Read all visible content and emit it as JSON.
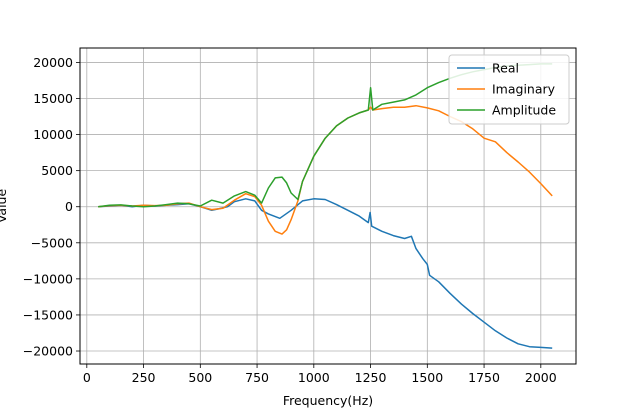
{
  "chart_data": {
    "type": "line",
    "title": "",
    "xlabel": "Frequency(Hz)",
    "ylabel": "Value",
    "xlim": [
      -30,
      2155
    ],
    "ylim": [
      -21800,
      22000
    ],
    "grid": true,
    "legend_position": "top-right",
    "xticks": [
      0,
      250,
      500,
      750,
      1000,
      1250,
      1500,
      1750,
      2000
    ],
    "xtick_labels": [
      "0",
      "250",
      "500",
      "750",
      "1000",
      "1250",
      "1500",
      "1750",
      "2000"
    ],
    "yticks": [
      -20000,
      -15000,
      -10000,
      -5000,
      0,
      5000,
      10000,
      15000,
      20000
    ],
    "ytick_labels": [
      "−20000",
      "−15000",
      "−10000",
      "−5000",
      "0",
      "5000",
      "10000",
      "15000",
      "20000"
    ],
    "series": [
      {
        "name": "Real",
        "color": "#1f77b4",
        "x": [
          50,
          100,
          150,
          200,
          250,
          300,
          350,
          400,
          450,
          500,
          550,
          580,
          620,
          650,
          700,
          740,
          770,
          800,
          850,
          900,
          950,
          1000,
          1050,
          1100,
          1150,
          1200,
          1240,
          1248,
          1255,
          1300,
          1350,
          1400,
          1430,
          1450,
          1480,
          1500,
          1510,
          1550,
          1600,
          1650,
          1700,
          1750,
          1800,
          1850,
          1900,
          1950,
          2000,
          2050
        ],
        "y": [
          0,
          100,
          200,
          0,
          200,
          100,
          200,
          300,
          400,
          0,
          -500,
          -300,
          0,
          700,
          1100,
          800,
          -500,
          -1000,
          -1600,
          -500,
          800,
          1100,
          1000,
          300,
          -500,
          -1300,
          -2200,
          -800,
          -2700,
          -3400,
          -4000,
          -4400,
          -4100,
          -5800,
          -7200,
          -8000,
          -9500,
          -10400,
          -12000,
          -13500,
          -14800,
          -16000,
          -17200,
          -18200,
          -19000,
          -19400,
          -19500,
          -19600
        ]
      },
      {
        "name": "Imaginary",
        "color": "#ff7f0e",
        "x": [
          50,
          100,
          150,
          200,
          250,
          300,
          350,
          400,
          450,
          500,
          550,
          600,
          650,
          700,
          740,
          770,
          800,
          830,
          860,
          880,
          900,
          930,
          950,
          1000,
          1050,
          1100,
          1150,
          1200,
          1240,
          1250,
          1260,
          1300,
          1350,
          1400,
          1450,
          1500,
          1550,
          1600,
          1650,
          1700,
          1750,
          1800,
          1850,
          1900,
          1950,
          2000,
          2050
        ],
        "y": [
          0,
          150,
          200,
          100,
          200,
          150,
          200,
          400,
          500,
          0,
          -400,
          -200,
          900,
          1800,
          1400,
          200,
          -2000,
          -3400,
          -3800,
          -3200,
          -1800,
          800,
          3500,
          7000,
          9500,
          11200,
          12300,
          13000,
          13400,
          13800,
          13400,
          13600,
          13800,
          13800,
          14000,
          13700,
          13300,
          12500,
          11800,
          10800,
          9500,
          9000,
          7500,
          6200,
          4800,
          3200,
          1500
        ]
      },
      {
        "name": "Amplitude",
        "color": "#2ca02c",
        "x": [
          50,
          100,
          150,
          200,
          250,
          300,
          350,
          400,
          450,
          500,
          550,
          600,
          650,
          700,
          740,
          770,
          800,
          830,
          860,
          880,
          900,
          930,
          950,
          1000,
          1050,
          1100,
          1150,
          1200,
          1240,
          1250,
          1260,
          1300,
          1350,
          1400,
          1450,
          1500,
          1550,
          1600,
          1650,
          1700,
          1750,
          1800,
          1850,
          1900,
          1950,
          2000,
          2050
        ],
        "y": [
          0,
          200,
          250,
          100,
          0,
          100,
          300,
          500,
          400,
          100,
          900,
          500,
          1500,
          2100,
          1600,
          500,
          2600,
          4000,
          4100,
          3300,
          1900,
          1000,
          3500,
          7000,
          9500,
          11200,
          12300,
          13000,
          13400,
          16500,
          13400,
          14200,
          14500,
          14800,
          15500,
          16500,
          17200,
          17800,
          18300,
          18700,
          19000,
          19300,
          19500,
          19600,
          19700,
          19800,
          19800
        ]
      }
    ]
  }
}
